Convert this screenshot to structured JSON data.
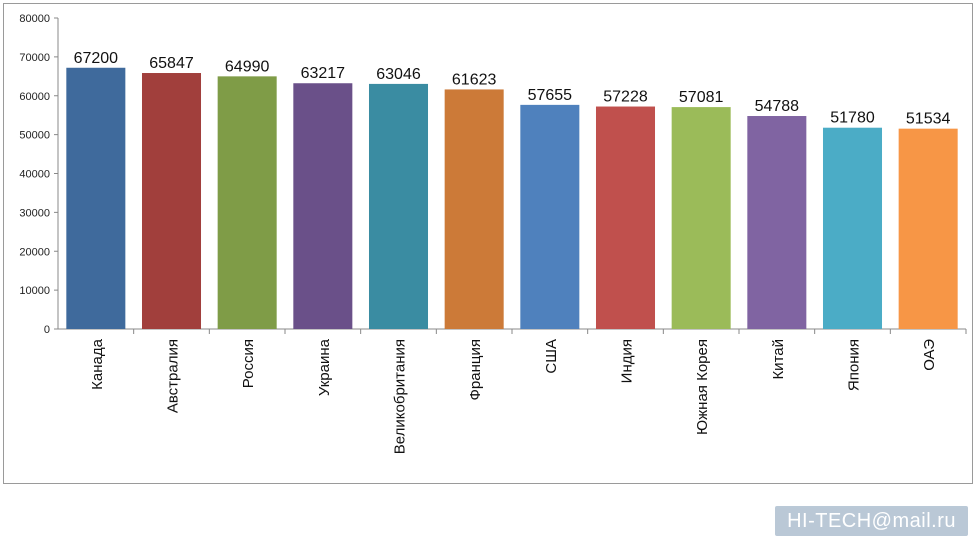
{
  "chart_data": {
    "type": "bar",
    "categories": [
      "Канада",
      "Австралия",
      "Россия",
      "Украина",
      "Великобритания",
      "Франция",
      "США",
      "Индия",
      "Южная Корея",
      "Китай",
      "Япония",
      "ОАЭ"
    ],
    "values": [
      67200,
      65847,
      64990,
      63217,
      63046,
      61623,
      57655,
      57228,
      57081,
      54788,
      51780,
      51534
    ],
    "data_labels": [
      "67200",
      "65847",
      "64990",
      "63217",
      "63046",
      "61623",
      "57655",
      "57228",
      "57081",
      "54788",
      "51780",
      "51534"
    ],
    "colors": [
      "#3f6a9c",
      "#a13f3c",
      "#7f9c47",
      "#6a5089",
      "#3a8ca2",
      "#cc7a38",
      "#4f81bd",
      "#c0504d",
      "#9bbb59",
      "#8064a2",
      "#4bacc6",
      "#f79646"
    ],
    "ylim": [
      0,
      80000
    ],
    "y_ticks": [
      "0",
      "10000",
      "20000",
      "30000",
      "40000",
      "50000",
      "60000",
      "70000",
      "80000"
    ],
    "grid": false,
    "legend": "none",
    "title": "",
    "xlabel": "",
    "ylabel": ""
  },
  "watermark": {
    "text": "HI-TECH@mail.ru"
  }
}
